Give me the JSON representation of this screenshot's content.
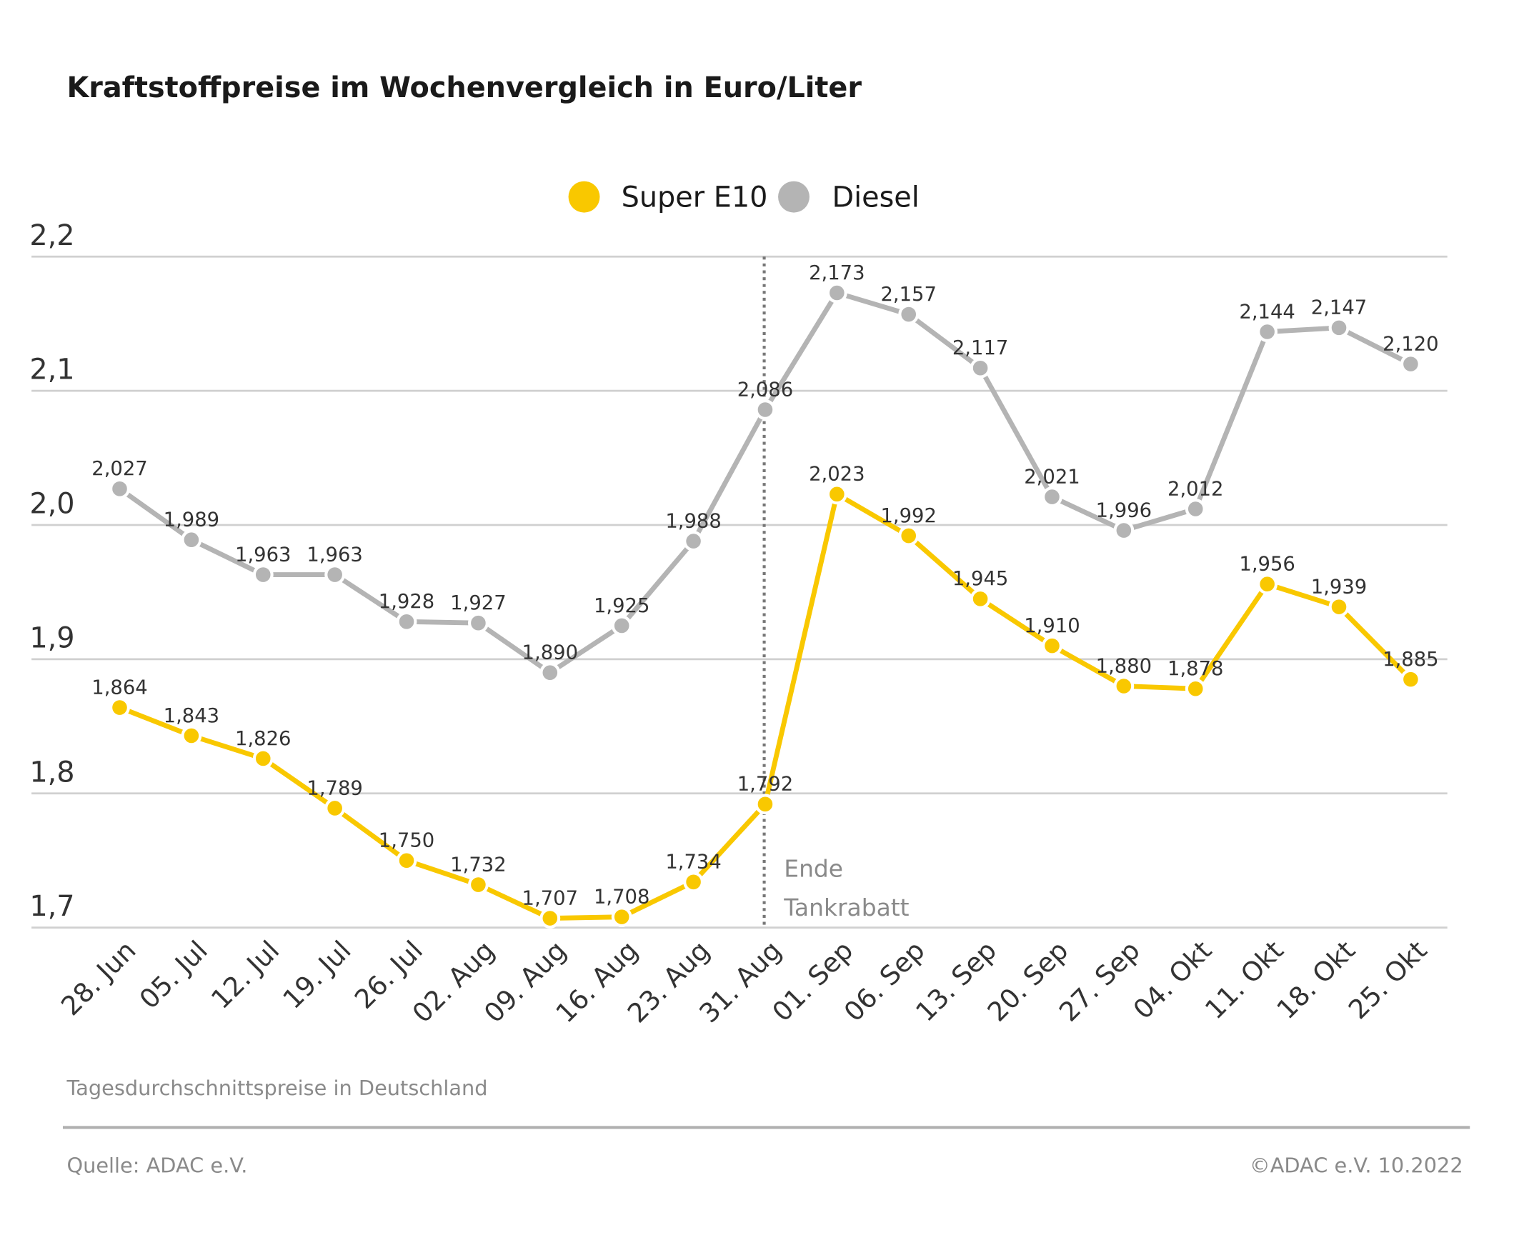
{
  "chart_data": {
    "type": "line",
    "title": "Kraftstoffpreise im Wochenvergleich in Euro/Liter",
    "categories": [
      "28. Jun",
      "05. Jul",
      "12. Jul",
      "19. Jul",
      "26. Jul",
      "02. Aug",
      "09. Aug",
      "16. Aug",
      "23. Aug",
      "31. Aug",
      "01. Sep",
      "06. Sep",
      "13. Sep",
      "20. Sep",
      "27. Sep",
      "04. Okt",
      "11. Okt",
      "18. Okt",
      "25. Okt"
    ],
    "series": [
      {
        "name": "Super E10",
        "color": "#f9c800",
        "values": [
          1.864,
          1.843,
          1.826,
          1.789,
          1.75,
          1.732,
          1.707,
          1.708,
          1.734,
          1.792,
          2.023,
          1.992,
          1.945,
          1.91,
          1.88,
          1.878,
          1.956,
          1.939,
          1.885
        ],
        "labels": [
          "1,864",
          "1,843",
          "1,826",
          "1,789",
          "1,750",
          "1,732",
          "1,707",
          "1,708",
          "1,734",
          "1,792",
          "2,023",
          "1,992",
          "1,945",
          "1,910",
          "1,880",
          "1,878",
          "1,956",
          "1,939",
          "1,885"
        ]
      },
      {
        "name": "Diesel",
        "color": "#b4b4b4",
        "values": [
          2.027,
          1.989,
          1.963,
          1.963,
          1.928,
          1.927,
          1.89,
          1.925,
          1.988,
          2.086,
          2.173,
          2.157,
          2.117,
          2.021,
          1.996,
          2.012,
          2.144,
          2.147,
          2.12
        ],
        "labels": [
          "2,027",
          "1,989",
          "1,963",
          "1,963",
          "1,928",
          "1,927",
          "1,890",
          "1,925",
          "1,988",
          "2,086",
          "2,173",
          "2,157",
          "2,117",
          "2,021",
          "1,996",
          "2,012",
          "2,144",
          "2,147",
          "2,120"
        ]
      }
    ],
    "ylim": [
      1.7,
      2.2
    ],
    "yticks": [
      2.2,
      2.1,
      2.0,
      1.9,
      1.8,
      1.7
    ],
    "ytick_labels": [
      "2,2",
      "2,1",
      "2,0",
      "1,9",
      "1,8",
      "1,7"
    ],
    "grid": true,
    "legend_position": "top-center",
    "annotation": {
      "category": "31. Aug",
      "line1": "Ende",
      "line2": "Tankrabatt"
    },
    "xlabel": "",
    "ylabel": ""
  },
  "footer": {
    "note": "Tagesdurchschnittspreise in Deutschland",
    "source": "Quelle: ADAC e.V.",
    "copyright": "©ADAC e.V.  10.2022"
  }
}
